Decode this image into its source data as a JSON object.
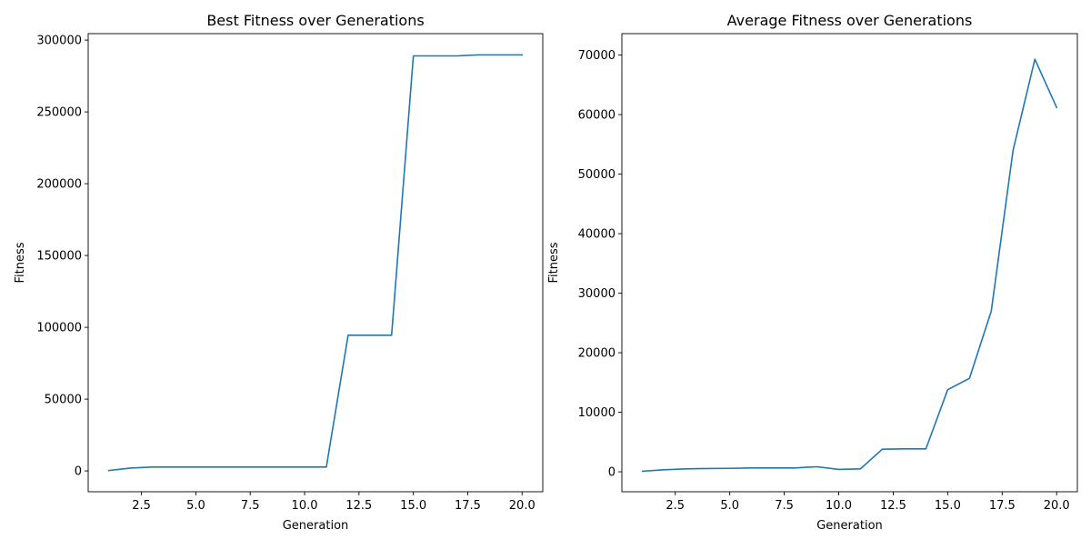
{
  "chart_data": [
    {
      "type": "line",
      "title": "Best Fitness over Generations",
      "xlabel": "Generation",
      "ylabel": "Fitness",
      "xlim": [
        0.05,
        20.95
      ],
      "ylim": [
        -14500,
        304500
      ],
      "xticks": [
        2.5,
        5.0,
        7.5,
        10.0,
        12.5,
        15.0,
        17.5,
        20.0
      ],
      "xtick_labels": [
        "2.5",
        "5.0",
        "7.5",
        "10.0",
        "12.5",
        "15.0",
        "17.5",
        "20.0"
      ],
      "yticks": [
        0,
        50000,
        100000,
        150000,
        200000,
        250000,
        300000
      ],
      "ytick_labels": [
        "0",
        "50000",
        "100000",
        "150000",
        "200000",
        "250000",
        "300000"
      ],
      "grid": false,
      "line_color": "#1f77b4",
      "series": [
        {
          "x": [
            1,
            2,
            3,
            4,
            5,
            6,
            7,
            8,
            9,
            10,
            11,
            12,
            13,
            14,
            15,
            16,
            17,
            18,
            19,
            20
          ],
          "y": [
            300,
            2000,
            2700,
            2700,
            2700,
            2700,
            2700,
            2700,
            2700,
            2700,
            2700,
            94500,
            94500,
            94500,
            289000,
            289000,
            289000,
            289700,
            289700,
            289700
          ]
        }
      ]
    },
    {
      "type": "line",
      "title": "Average Fitness over Generations",
      "xlabel": "Generation",
      "ylabel": "Fitness",
      "xlim": [
        0.05,
        20.95
      ],
      "ylim": [
        -3350,
        73600
      ],
      "xticks": [
        2.5,
        5.0,
        7.5,
        10.0,
        12.5,
        15.0,
        17.5,
        20.0
      ],
      "xtick_labels": [
        "2.5",
        "5.0",
        "7.5",
        "10.0",
        "12.5",
        "15.0",
        "17.5",
        "20.0"
      ],
      "yticks": [
        0,
        10000,
        20000,
        30000,
        40000,
        50000,
        60000,
        70000
      ],
      "ytick_labels": [
        "0",
        "10000",
        "20000",
        "30000",
        "40000",
        "50000",
        "60000",
        "70000"
      ],
      "grid": false,
      "line_color": "#1f77b4",
      "series": [
        {
          "x": [
            1,
            2,
            3,
            4,
            5,
            6,
            7,
            8,
            9,
            10,
            11,
            12,
            13,
            14,
            15,
            16,
            17,
            18,
            19,
            20
          ],
          "y": [
            100,
            350,
            500,
            550,
            580,
            650,
            650,
            650,
            850,
            400,
            500,
            3800,
            3850,
            3850,
            13800,
            15700,
            27000,
            54000,
            69300,
            61200
          ]
        }
      ]
    }
  ]
}
